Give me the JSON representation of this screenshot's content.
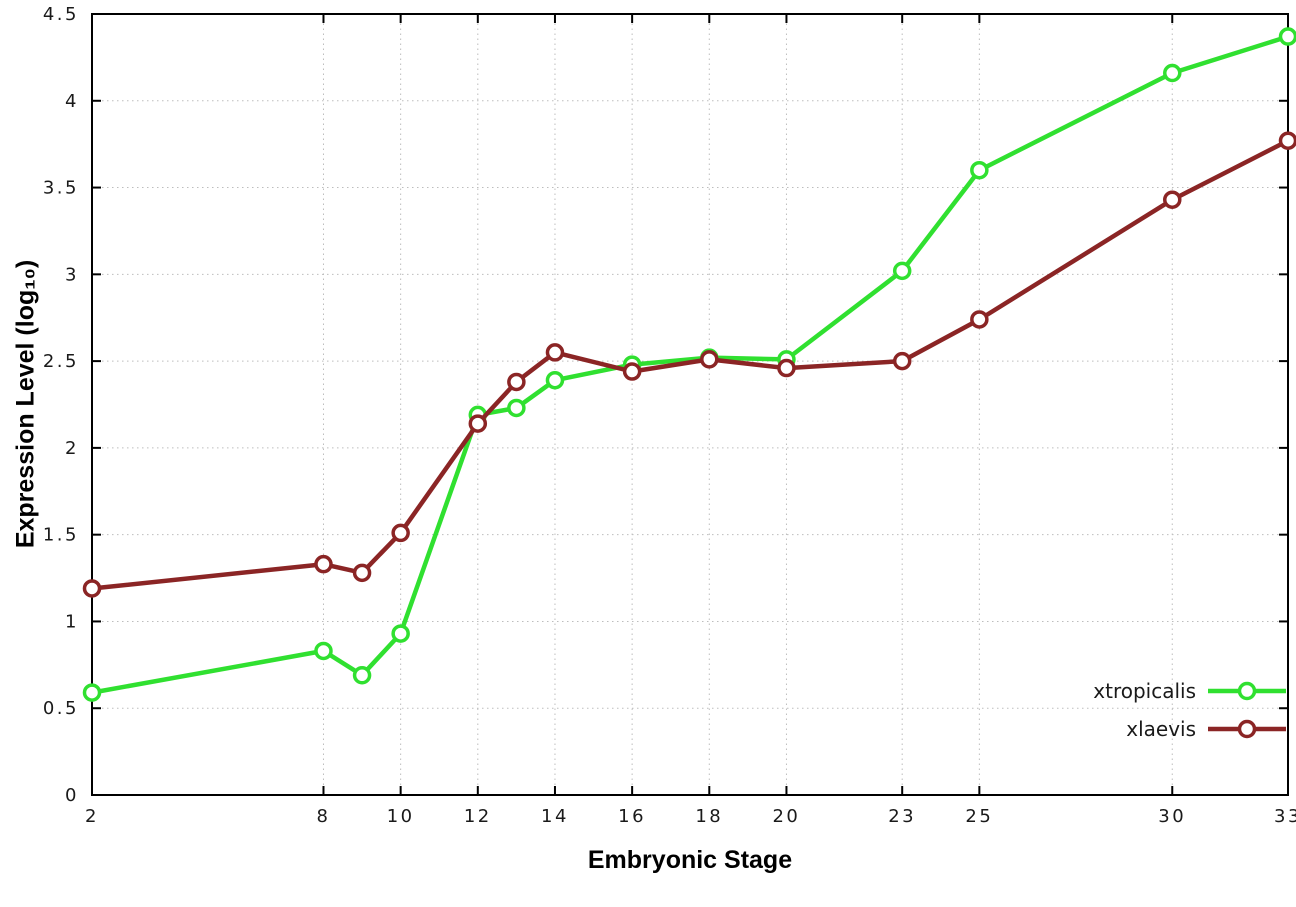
{
  "figure": {
    "background": "#ffffff"
  },
  "chart_data": {
    "type": "line",
    "title": "",
    "xlabel": "Embryonic Stage",
    "ylabel": "Expression Level (log₁₀)",
    "xlim": [
      2,
      33
    ],
    "ylim": [
      0,
      4.5
    ],
    "xticks": [
      2,
      8,
      10,
      12,
      14,
      16,
      18,
      20,
      23,
      25,
      30,
      33
    ],
    "yticks": [
      0,
      0.5,
      1,
      1.5,
      2,
      2.5,
      3,
      3.5,
      4,
      4.5
    ],
    "grid": true,
    "legend_position": "bottom-right",
    "x": [
      2,
      8,
      9,
      10,
      12,
      13,
      14,
      16,
      18,
      20,
      23,
      25,
      30,
      33
    ],
    "series": [
      {
        "name": "xtropicalis",
        "color": "#30e030",
        "values": [
          0.59,
          0.83,
          0.69,
          0.93,
          2.19,
          2.23,
          2.39,
          2.48,
          2.52,
          2.51,
          3.02,
          3.6,
          4.16,
          4.37
        ]
      },
      {
        "name": "xlaevis",
        "color": "#8b2525",
        "values": [
          1.19,
          1.33,
          1.28,
          1.51,
          2.14,
          2.38,
          2.55,
          2.44,
          2.51,
          2.46,
          2.5,
          2.74,
          3.43,
          3.77
        ]
      }
    ],
    "axis_color": "#000000",
    "grid_color": "#bdbdbd",
    "tick_label_color": "#1a1a1a",
    "marker": "open-circle"
  }
}
